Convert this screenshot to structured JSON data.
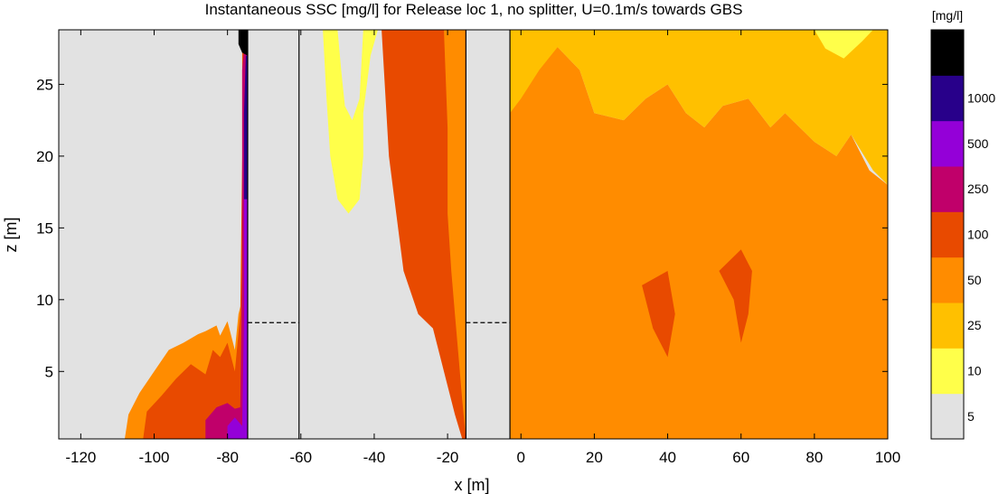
{
  "chart_data": {
    "type": "heatmap",
    "title": "Instantaneous SSC [mg/l] for Release loc 1, no splitter, U=0.1m/s towards GBS",
    "xlabel": "x [m]",
    "ylabel": "z [m]",
    "xlim": [
      -126,
      100
    ],
    "ylim": [
      0.3,
      28.8
    ],
    "xticks": [
      "-120",
      "-100",
      "-80",
      "-60",
      "-40",
      "-20",
      "0",
      "20",
      "40",
      "60",
      "80",
      "100"
    ],
    "yticks": [
      "5",
      "10",
      "15",
      "20",
      "25"
    ],
    "colorbar": {
      "unit": "[mg/l]",
      "labels": [
        "5",
        "10",
        "25",
        "50",
        "100",
        "250",
        "500",
        "1000"
      ],
      "classes": [
        {
          "color": "#e2e2e2"
        },
        {
          "color": "#ffff4a"
        },
        {
          "color": "#ffc000"
        },
        {
          "color": "#ff8c00"
        },
        {
          "color": "#e84a00"
        },
        {
          "color": "#c0006a"
        },
        {
          "color": "#9400d8"
        },
        {
          "color": "#28008a"
        },
        {
          "color": "#000000"
        }
      ]
    },
    "structures": [
      {
        "x0": -74.5,
        "x1": -60.5,
        "color": "#e2e2e2"
      },
      {
        "x0": -15,
        "x1": -3,
        "color": "#e2e2e2"
      }
    ],
    "reference_level_z": 8.4,
    "regions": [
      {
        "color": "#ff8c00",
        "pts": [
          [
            -108,
            0.3
          ],
          [
            -107,
            2
          ],
          [
            -104,
            3.5
          ],
          [
            -100,
            5
          ],
          [
            -96,
            6.5
          ],
          [
            -92,
            7
          ],
          [
            -88,
            7.6
          ],
          [
            -86,
            7.8
          ],
          [
            -83,
            8.2
          ],
          [
            -82,
            7.5
          ],
          [
            -80,
            8.5
          ],
          [
            -78,
            6.5
          ],
          [
            -77,
            9
          ],
          [
            -76,
            10
          ],
          [
            -75.5,
            28.8
          ],
          [
            -74.5,
            28.8
          ],
          [
            -74.5,
            0.3
          ]
        ]
      },
      {
        "color": "#e84a00",
        "pts": [
          [
            -103,
            0.3
          ],
          [
            -102,
            2.2
          ],
          [
            -98,
            3.3
          ],
          [
            -94,
            4.5
          ],
          [
            -90,
            5.5
          ],
          [
            -86,
            4.8
          ],
          [
            -84,
            6.5
          ],
          [
            -82,
            6
          ],
          [
            -80,
            7
          ],
          [
            -78,
            5
          ],
          [
            -76.5,
            9
          ],
          [
            -76,
            20
          ],
          [
            -76,
            28
          ],
          [
            -74.5,
            28.8
          ],
          [
            -74.5,
            0.3
          ]
        ]
      },
      {
        "color": "#c0006a",
        "pts": [
          [
            -86,
            0.3
          ],
          [
            -86,
            1.6
          ],
          [
            -83,
            2.5
          ],
          [
            -80,
            2.8
          ],
          [
            -78,
            2.4
          ],
          [
            -76.5,
            2.5
          ],
          [
            -76,
            12
          ],
          [
            -76,
            26
          ],
          [
            -75,
            28.8
          ],
          [
            -74.5,
            28.8
          ],
          [
            -74.5,
            0.3
          ]
        ]
      },
      {
        "color": "#9400d8",
        "pts": [
          [
            -80,
            0.3
          ],
          [
            -80,
            1.2
          ],
          [
            -78,
            1.8
          ],
          [
            -76,
            1.2
          ],
          [
            -75.5,
            9
          ],
          [
            -75.5,
            21
          ],
          [
            -75,
            26
          ],
          [
            -74.5,
            27
          ],
          [
            -74.5,
            0.3
          ]
        ]
      },
      {
        "color": "#28008a",
        "pts": [
          [
            -75.5,
            17
          ],
          [
            -75.5,
            23
          ],
          [
            -75,
            27
          ],
          [
            -74.5,
            27
          ],
          [
            -74.5,
            17
          ]
        ]
      },
      {
        "color": "#000000",
        "pts": [
          [
            -77,
            28.8
          ],
          [
            -77,
            27.8
          ],
          [
            -76,
            27.2
          ],
          [
            -74.5,
            27
          ],
          [
            -74.5,
            28.8
          ]
        ]
      },
      {
        "color": "#ffff4a",
        "pts": [
          [
            -54,
            28.8
          ],
          [
            -53,
            24
          ],
          [
            -52,
            20
          ],
          [
            -50,
            17
          ],
          [
            -47,
            16
          ],
          [
            -44,
            17
          ],
          [
            -43,
            20
          ],
          [
            -43,
            23
          ],
          [
            -41,
            27
          ],
          [
            -39,
            28.8
          ]
        ]
      },
      {
        "color": "#e2e2e2",
        "pts": [
          [
            -50,
            28.8
          ],
          [
            -49,
            26
          ],
          [
            -48,
            23.5
          ],
          [
            -46,
            22.5
          ],
          [
            -44,
            24
          ],
          [
            -43,
            28.8
          ]
        ]
      },
      {
        "color": "#e2e2e2",
        "pts": [
          [
            -32,
            28.8
          ],
          [
            -32,
            24
          ],
          [
            -30,
            20.8
          ],
          [
            -28,
            22
          ],
          [
            -26,
            25
          ],
          [
            -25,
            28.8
          ]
        ]
      },
      {
        "color": "#ffc000",
        "pts": [
          [
            -29,
            20.8
          ],
          [
            -30,
            23
          ],
          [
            -27,
            22.5
          ],
          [
            -27.5,
            20.5
          ]
        ]
      },
      {
        "color": "#ffc000",
        "pts": [
          [
            -24,
            28.8
          ],
          [
            -23.5,
            26
          ],
          [
            -21,
            25
          ],
          [
            -20,
            28.8
          ]
        ]
      },
      {
        "color": "#e84a00",
        "pts": [
          [
            -38,
            28.8
          ],
          [
            -36,
            20
          ],
          [
            -34,
            16
          ],
          [
            -32,
            12
          ],
          [
            -28,
            9
          ],
          [
            -24,
            8
          ],
          [
            -22,
            6
          ],
          [
            -20,
            4
          ],
          [
            -18,
            2
          ],
          [
            -16,
            0.3
          ],
          [
            -15,
            0.3
          ],
          [
            -15,
            28.8
          ]
        ]
      },
      {
        "color": "#ff8c00",
        "pts": [
          [
            -21,
            28.8
          ],
          [
            -20,
            22
          ],
          [
            -20,
            16
          ],
          [
            -19,
            12
          ],
          [
            -18,
            9
          ],
          [
            -17,
            6
          ],
          [
            -16,
            3
          ],
          [
            -15,
            0.3
          ],
          [
            -15,
            28.8
          ]
        ]
      },
      {
        "color": "#e84a00",
        "pts": [
          [
            -3,
            0.3
          ],
          [
            -3,
            20.5
          ],
          [
            5,
            21
          ],
          [
            10,
            20.5
          ],
          [
            14,
            16
          ],
          [
            20,
            15
          ],
          [
            26,
            14
          ],
          [
            32,
            13
          ],
          [
            40,
            12
          ],
          [
            50,
            13
          ],
          [
            60,
            13
          ],
          [
            65,
            11.5
          ],
          [
            70,
            11.5
          ],
          [
            80,
            13
          ],
          [
            86,
            10
          ],
          [
            90,
            6
          ],
          [
            92,
            4
          ],
          [
            94,
            2.5
          ],
          [
            95,
            0.3
          ]
        ]
      },
      {
        "color": "#ff8c00",
        "pts": [
          [
            -3,
            0.3
          ],
          [
            -3,
            28
          ],
          [
            10,
            27.6
          ],
          [
            16,
            26
          ],
          [
            20,
            23
          ],
          [
            28,
            22.5
          ],
          [
            34,
            24
          ],
          [
            40,
            25
          ],
          [
            45,
            23
          ],
          [
            50,
            22
          ],
          [
            55,
            23.5
          ],
          [
            62,
            24
          ],
          [
            68,
            22
          ],
          [
            72,
            23
          ],
          [
            80,
            21
          ],
          [
            86,
            20
          ],
          [
            90,
            21.5
          ],
          [
            95,
            19
          ],
          [
            100,
            18
          ],
          [
            100,
            0.3
          ]
        ]
      },
      {
        "color": "#ffc000",
        "pts": [
          [
            -3,
            23
          ],
          [
            -3,
            28.8
          ],
          [
            100,
            28.8
          ],
          [
            100,
            18
          ],
          [
            96,
            19
          ],
          [
            90,
            21.5
          ],
          [
            86,
            20
          ],
          [
            80,
            21
          ],
          [
            72,
            23
          ],
          [
            68,
            22
          ],
          [
            62,
            24
          ],
          [
            55,
            23.5
          ],
          [
            50,
            22
          ],
          [
            45,
            23
          ],
          [
            40,
            25
          ],
          [
            34,
            24
          ],
          [
            28,
            22.5
          ],
          [
            20,
            23
          ],
          [
            16,
            26
          ],
          [
            10,
            27.6
          ],
          [
            5,
            26
          ],
          [
            0,
            24
          ]
        ]
      },
      {
        "color": "#ffff4a",
        "pts": [
          [
            80,
            28.8
          ],
          [
            83,
            27.5
          ],
          [
            88,
            26.8
          ],
          [
            93,
            28
          ],
          [
            96,
            28.8
          ]
        ]
      },
      {
        "color": "#e84a00",
        "pts": [
          [
            54,
            12
          ],
          [
            58,
            10
          ],
          [
            60,
            7
          ],
          [
            62,
            9
          ],
          [
            63,
            12
          ],
          [
            60,
            13.5
          ]
        ]
      },
      {
        "color": "#e84a00",
        "pts": [
          [
            33,
            11
          ],
          [
            36,
            8
          ],
          [
            40,
            6
          ],
          [
            42,
            9
          ],
          [
            40,
            12
          ]
        ]
      }
    ]
  }
}
